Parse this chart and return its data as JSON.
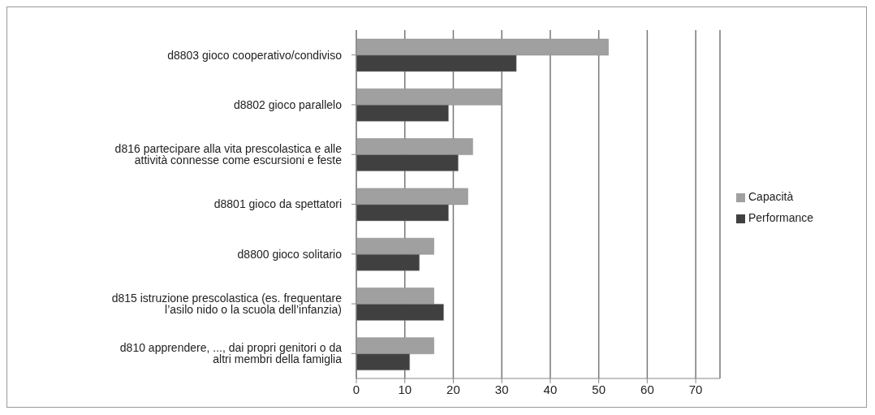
{
  "chart_data": {
    "type": "bar",
    "orientation": "horizontal",
    "categories": [
      "d8803 gioco cooperativo/condiviso",
      "d8802 gioco parallelo",
      "d816 partecipare alla vita prescolastica e alle attività connesse come escursioni e feste",
      "d8801 gioco da spettatori",
      "d8800 gioco solitario",
      "d815 istruzione prescolastica (es. frequentare l’asilo nido o la scuola dell’infanzia)",
      "d810 apprendere, ..., dai propri genitori o da altri membri della famiglia"
    ],
    "series": [
      {
        "name": "Capacità",
        "color": "#a0a0a0",
        "values": [
          52,
          30,
          24,
          23,
          16,
          16,
          16
        ]
      },
      {
        "name": "Performance",
        "color": "#404040",
        "values": [
          33,
          19,
          21,
          19,
          13,
          18,
          11
        ]
      }
    ],
    "xlim": [
      0,
      75
    ],
    "xticks": [
      0,
      10,
      20,
      30,
      40,
      50,
      60,
      70
    ],
    "grid": "x",
    "legend": "right"
  }
}
